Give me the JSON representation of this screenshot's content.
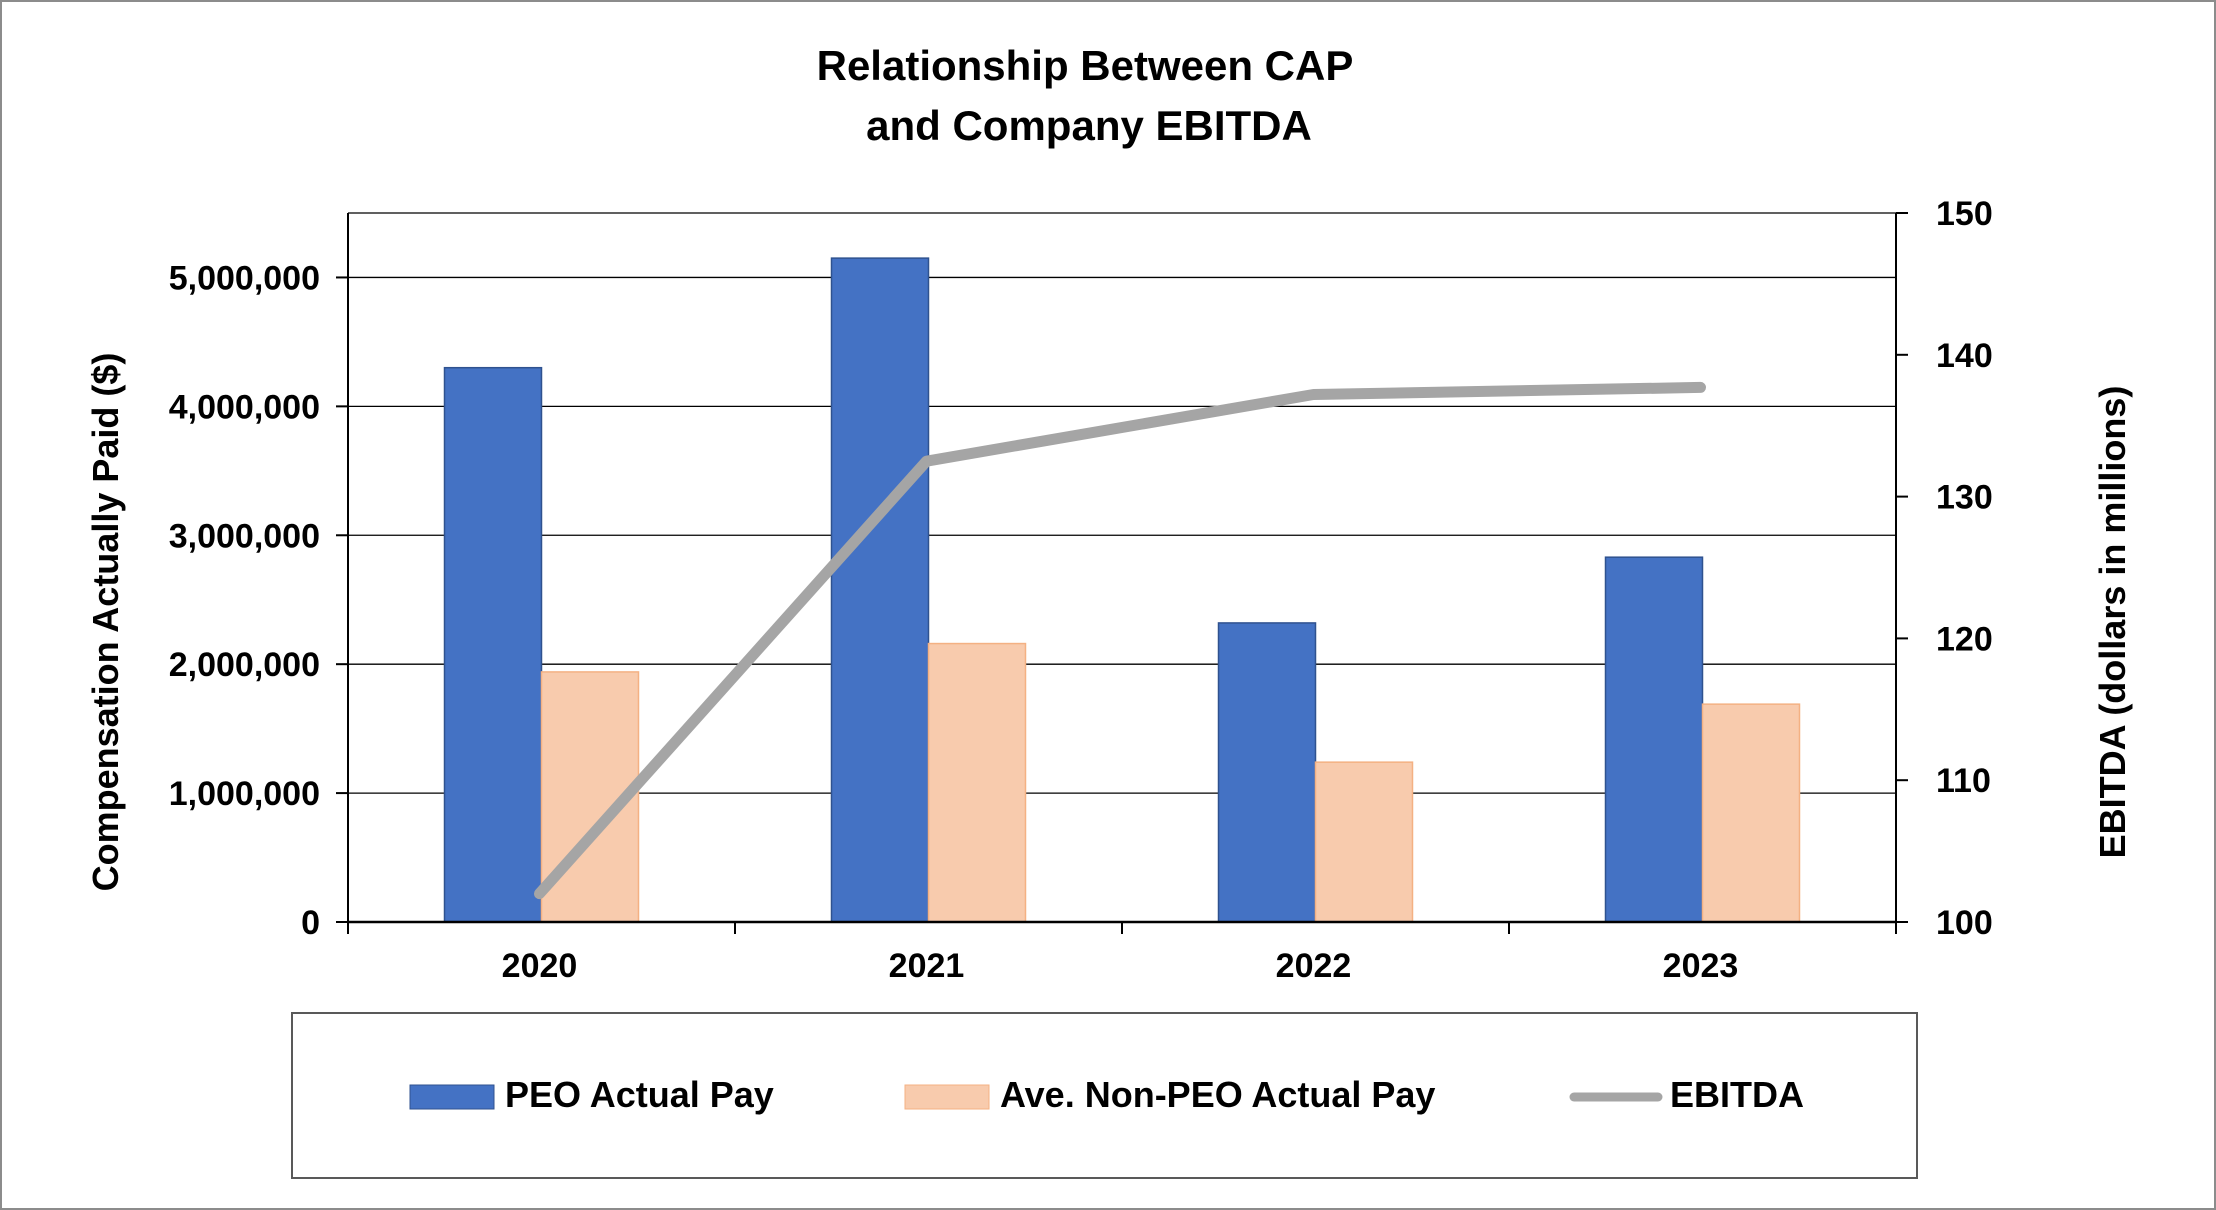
{
  "chart_data": {
    "type": "bar",
    "title": [
      "Relationship Between CAP",
      "and Company EBITDA"
    ],
    "categories": [
      "2020",
      "2021",
      "2022",
      "2023"
    ],
    "series": [
      {
        "name": "PEO Actual Pay",
        "kind": "bar",
        "axis": "left",
        "color": "#4472C4",
        "values": [
          4300000,
          5150000,
          2320000,
          2830000
        ]
      },
      {
        "name": "Ave. Non-PEO Actual Pay",
        "kind": "bar",
        "axis": "left",
        "color": "#F8CBAD",
        "values": [
          1940000,
          2160000,
          1240000,
          1690000
        ]
      },
      {
        "name": "EBITDA",
        "kind": "line",
        "axis": "right",
        "color": "#A5A5A5",
        "values": [
          102,
          132.5,
          137.2,
          137.7
        ]
      }
    ],
    "y_left": {
      "label": "Compensation Actually Paid ($)",
      "range": [
        0,
        5500000
      ],
      "ticks": [
        0,
        1000000,
        2000000,
        3000000,
        4000000,
        5000000
      ],
      "tick_labels": [
        "0",
        "1,000,000",
        "2,000,000",
        "3,000,000",
        "4,000,000",
        "5,000,000"
      ]
    },
    "y_right": {
      "label": "EBITDA (dollars in millions)",
      "range": [
        100,
        150
      ],
      "ticks": [
        100,
        110,
        120,
        130,
        140,
        150
      ],
      "tick_labels": [
        "100",
        "110",
        "120",
        "130",
        "140",
        "150"
      ]
    },
    "grid": true,
    "legend": "bottom"
  }
}
